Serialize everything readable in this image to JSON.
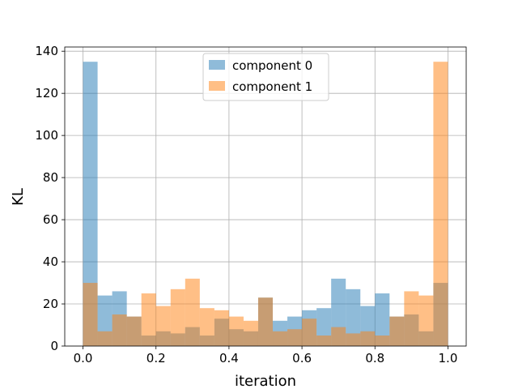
{
  "chart_data": {
    "type": "bar",
    "xlabel": "iteration",
    "ylabel": "KL",
    "xlim": [
      -0.05,
      1.05
    ],
    "ylim": [
      0,
      142
    ],
    "bin_width": 0.04,
    "grid": true,
    "legend_position": "top-center",
    "x_ticks": [
      0.0,
      0.2,
      0.4,
      0.6,
      0.8,
      1.0
    ],
    "x_tick_labels": [
      "0.0",
      "0.2",
      "0.4",
      "0.6",
      "0.8",
      "1.0"
    ],
    "y_ticks": [
      0,
      20,
      40,
      60,
      80,
      100,
      120,
      140
    ],
    "y_tick_labels": [
      "0",
      "20",
      "40",
      "60",
      "80",
      "100",
      "120",
      "140"
    ],
    "bin_starts": [
      0.0,
      0.04,
      0.08,
      0.12,
      0.16,
      0.2,
      0.24,
      0.28,
      0.32,
      0.36,
      0.4,
      0.44,
      0.48,
      0.52,
      0.56,
      0.6,
      0.64,
      0.68,
      0.72,
      0.76,
      0.8,
      0.84,
      0.88,
      0.92,
      0.96
    ],
    "series": [
      {
        "name": "component 0",
        "color": "#1f77b4",
        "values": [
          135,
          24,
          26,
          14,
          5,
          7,
          6,
          9,
          5,
          13,
          8,
          7,
          23,
          12,
          14,
          17,
          18,
          32,
          27,
          19,
          25,
          14,
          15,
          7,
          30
        ]
      },
      {
        "name": "component 1",
        "color": "#ff7f0e",
        "values": [
          30,
          7,
          15,
          14,
          25,
          19,
          27,
          32,
          18,
          17,
          14,
          12,
          23,
          7,
          8,
          13,
          5,
          9,
          6,
          7,
          5,
          14,
          26,
          24,
          135
        ]
      }
    ]
  }
}
